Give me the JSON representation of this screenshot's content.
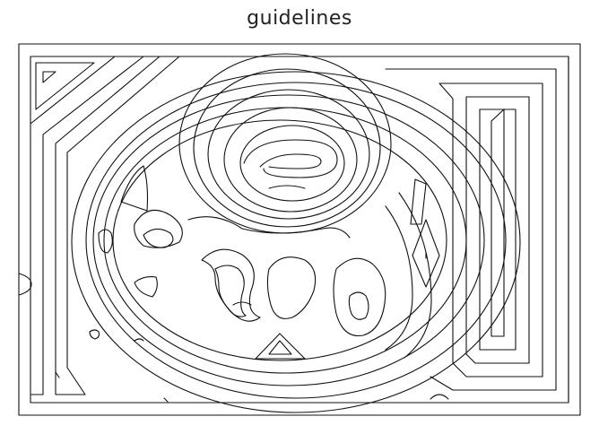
{
  "title": "guidelines",
  "colors": {
    "line": "#111111",
    "background": "#ffffff",
    "title": "#222222"
  }
}
